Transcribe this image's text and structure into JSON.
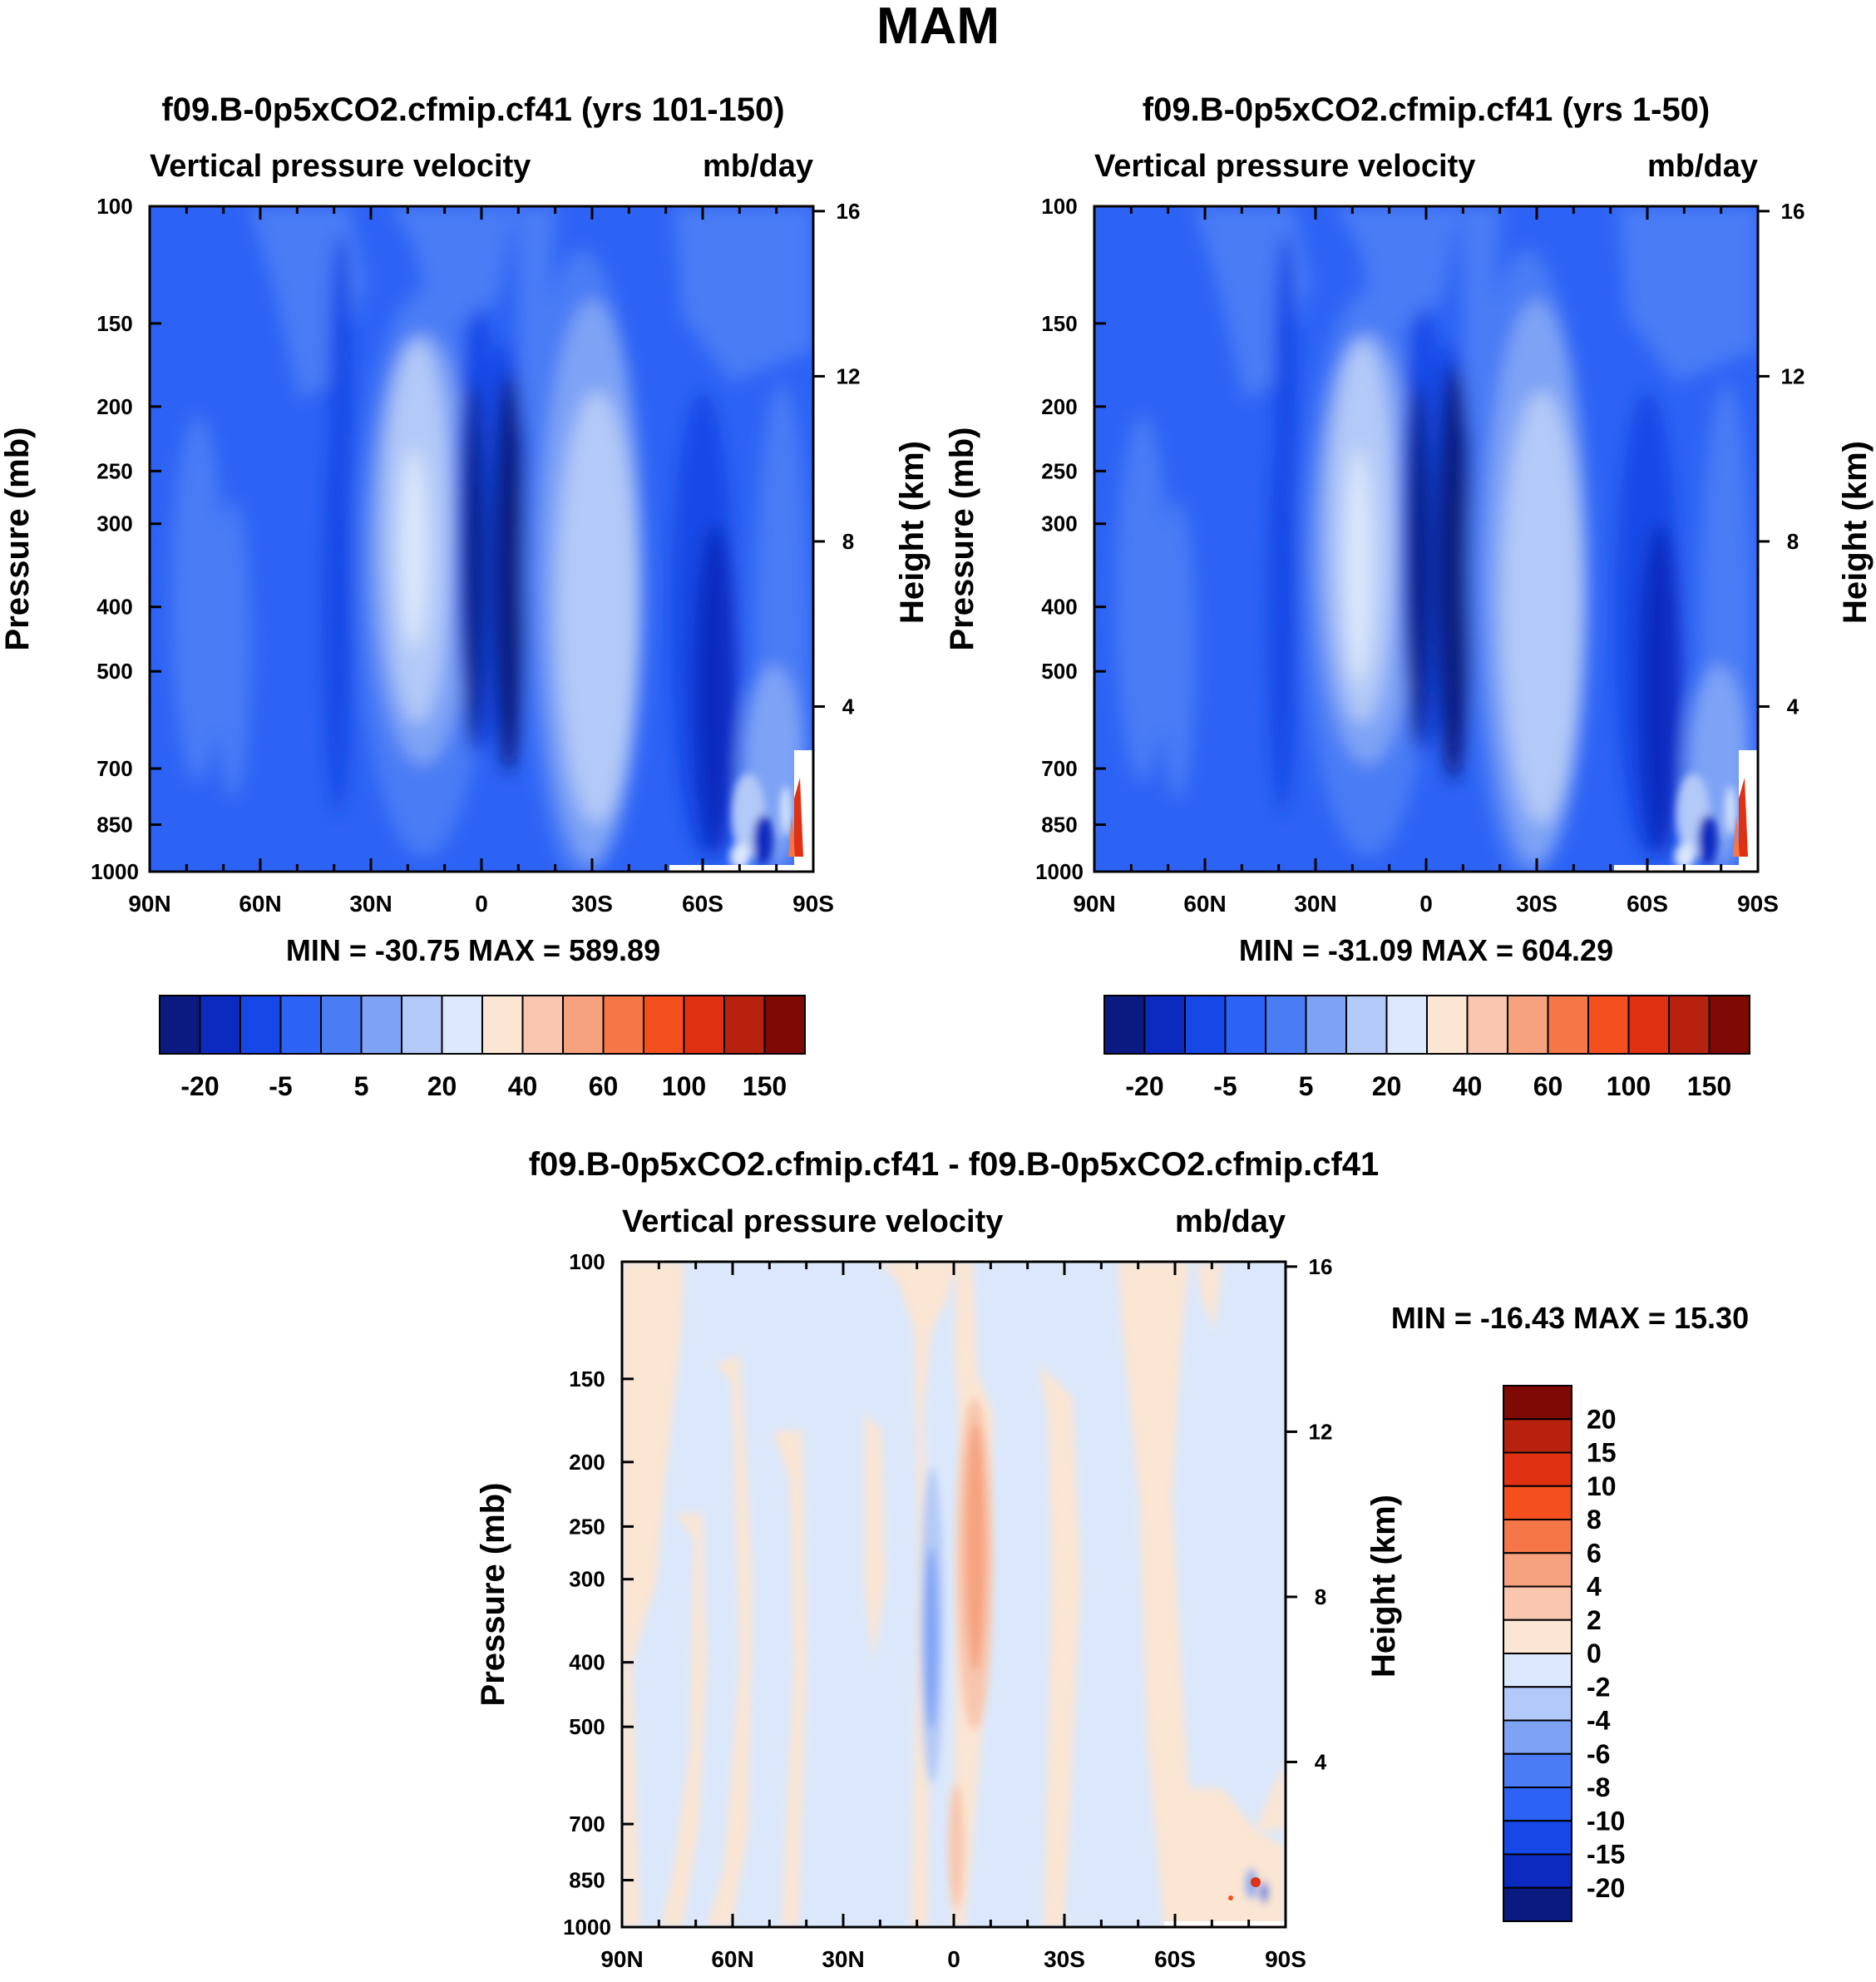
{
  "page_title": "MAM",
  "chart_data": [
    {
      "id": "p1",
      "type": "heatmap",
      "title": "f09.B-0p5xCO2.cfmip.cf41 (yrs 101-150)",
      "variable": "Vertical pressure velocity",
      "units": "mb/day",
      "ylabel": "Pressure (mb)",
      "ylabel_right": "Height (km)",
      "x_ticks": [
        "90N",
        "60N",
        "30N",
        "0",
        "30S",
        "60S",
        "90S"
      ],
      "y_ticks": [
        100,
        150,
        200,
        250,
        300,
        400,
        500,
        700,
        850,
        1000
      ],
      "height_ticks": [
        16,
        12,
        8,
        4
      ],
      "xlim": [
        90,
        -90
      ],
      "ylim": [
        1000,
        100
      ],
      "stats": "MIN = -30.75  MAX = 589.89",
      "colorbar_labels": [
        "-20",
        "-5",
        "5",
        "20",
        "40",
        "60",
        "100",
        "150"
      ]
    },
    {
      "id": "p2",
      "type": "heatmap",
      "title": "f09.B-0p5xCO2.cfmip.cf41 (yrs 1-50)",
      "variable": "Vertical pressure velocity",
      "units": "mb/day",
      "ylabel": "Pressure (mb)",
      "ylabel_right": "Height (km)",
      "x_ticks": [
        "90N",
        "60N",
        "30N",
        "0",
        "30S",
        "60S",
        "90S"
      ],
      "y_ticks": [
        100,
        150,
        200,
        250,
        300,
        400,
        500,
        700,
        850,
        1000
      ],
      "height_ticks": [
        16,
        12,
        8,
        4
      ],
      "xlim": [
        90,
        -90
      ],
      "ylim": [
        1000,
        100
      ],
      "stats": "MIN = -31.09  MAX = 604.29",
      "colorbar_labels": [
        "-20",
        "-5",
        "5",
        "20",
        "40",
        "60",
        "100",
        "150"
      ]
    },
    {
      "id": "p3",
      "type": "heatmap",
      "title": "f09.B-0p5xCO2.cfmip.cf41 - f09.B-0p5xCO2.cfmip.cf41",
      "variable": "Vertical pressure velocity",
      "units": "mb/day",
      "ylabel": "Pressure (mb)",
      "ylabel_right": "Height (km)",
      "x_ticks": [
        "90N",
        "60N",
        "30N",
        "0",
        "30S",
        "60S",
        "90S"
      ],
      "y_ticks": [
        100,
        150,
        200,
        250,
        300,
        400,
        500,
        700,
        850,
        1000
      ],
      "height_ticks": [
        16,
        12,
        8,
        4
      ],
      "xlim": [
        90,
        -90
      ],
      "ylim": [
        1000,
        100
      ],
      "stats": "MIN = -16.43  MAX =  15.30",
      "colorbar_labels": [
        "20",
        "15",
        "10",
        "8",
        "6",
        "4",
        "2",
        "0",
        "-2",
        "-4",
        "-6",
        "-8",
        "-10",
        "-15",
        "-20"
      ]
    }
  ],
  "colors": {
    "abs_scale": [
      "#0a1a80",
      "#0b2bc0",
      "#1548e6",
      "#2d63f5",
      "#4a7cf5",
      "#7ea3f5",
      "#b3c9f7",
      "#dbe8fb",
      "#fbe5d3",
      "#f8c6ae",
      "#f6a27e",
      "#f57747",
      "#f4501e",
      "#e03213",
      "#b7220f",
      "#7f0a05"
    ],
    "diff_scale": [
      "#7f0a05",
      "#b7220f",
      "#e03213",
      "#f4501e",
      "#f57747",
      "#f6a27e",
      "#f8c6ae",
      "#fbe5d3",
      "#dbe8fb",
      "#b3c9f7",
      "#7ea3f5",
      "#4a7cf5",
      "#2d63f5",
      "#1548e6",
      "#0b2bc0",
      "#0a1a80"
    ]
  }
}
